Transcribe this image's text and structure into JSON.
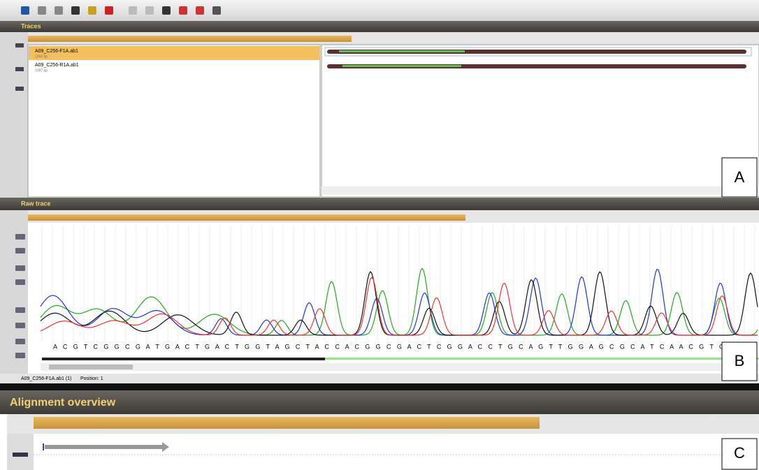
{
  "traces_panel": {
    "title": "Traces",
    "files": [
      {
        "name": "A09_C256-F1A.ab1",
        "info": "1096 bp"
      },
      {
        "name": "A09_C256-R1A.ab1",
        "info": "1097 bp"
      }
    ],
    "label": "A"
  },
  "raw_trace_panel": {
    "title": "Raw trace",
    "sequence": "A C G T C G G C G A T G A C T G A C T G G T A G C T A C C A C G G C G A C T C G G A C C T G C A G T T G G A G C G C A T C A A C G T G",
    "status": [
      "A09_C256-F1A.ab1 (1)",
      "Position: 1"
    ],
    "label": "B"
  },
  "alignment_panel": {
    "title": "Alignment overview",
    "label": "C"
  }
}
